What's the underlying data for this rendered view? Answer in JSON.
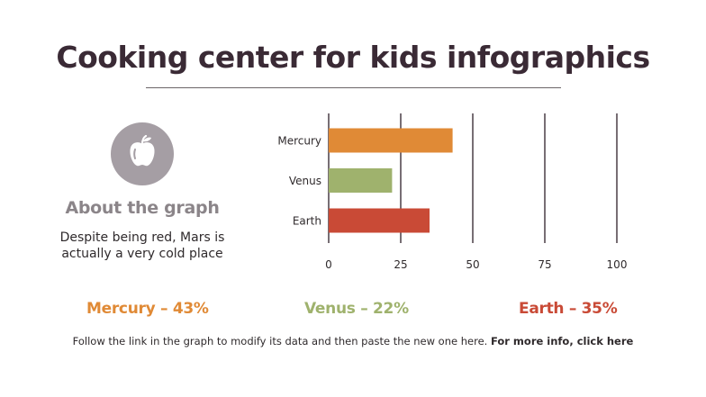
{
  "title": "Cooking center for kids infographics",
  "about": {
    "heading": "About the graph",
    "text": "Despite being red, Mars is actually a very cold place",
    "icon": "apple-icon"
  },
  "stats": {
    "mercury": "Mercury – 43%",
    "venus": "Venus – 22%",
    "earth": "Earth – 35%"
  },
  "footer": {
    "text": "Follow the link in the graph to modify its data and then paste the new one here.",
    "link": "For more info, click here"
  },
  "colors": {
    "mercury": "#e08a36",
    "venus": "#9fb26d",
    "earth": "#c94a36",
    "gridline": "#4a3f47",
    "label": "#2f2a2c"
  },
  "chart_data": {
    "type": "bar",
    "orientation": "horizontal",
    "categories": [
      "Mercury",
      "Venus",
      "Earth"
    ],
    "values": [
      43,
      22,
      35
    ],
    "xlim": [
      0,
      100
    ],
    "xticks": [
      0,
      25,
      50,
      75,
      100
    ],
    "title": "",
    "xlabel": "",
    "ylabel": "",
    "grid": true,
    "legend": "none"
  }
}
